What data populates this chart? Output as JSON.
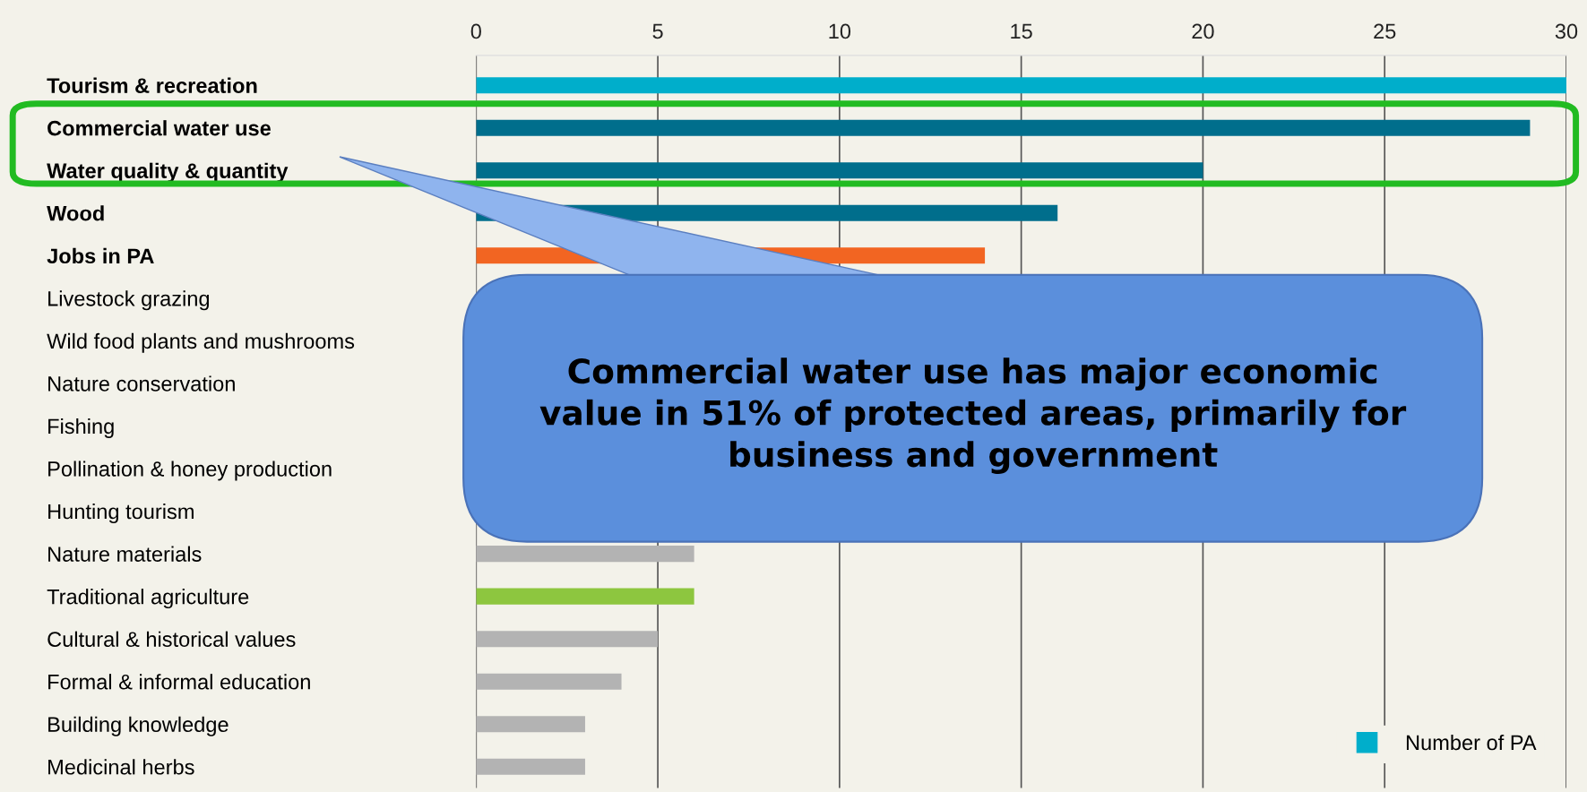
{
  "chart_data": {
    "type": "bar",
    "orientation": "horizontal",
    "categories": [
      "Tourism & recreation",
      "Commercial water use",
      "Water quality & quantity",
      "Wood",
      "Jobs in PA",
      "Livestock grazing",
      "Wild food plants and mushrooms",
      "Nature conservation",
      "Fishing",
      "Pollination & honey production",
      "Hunting tourism",
      "Nature materials",
      "Traditional agriculture",
      "Cultural & historical values",
      "Formal & informal education",
      "Building knowledge",
      "Medicinal herbs"
    ],
    "series": [
      {
        "name": "Number of PA",
        "color": "#00aecb",
        "values": [
          30,
          29,
          20,
          16,
          14,
          null,
          null,
          null,
          null,
          null,
          null,
          6,
          6,
          5,
          4,
          3,
          3
        ],
        "colors": [
          "#00aecb",
          "#006e8c",
          "#006e8c",
          "#006e8c",
          "#f26522",
          "#b3b3b3",
          "#b3b3b3",
          "#b3b3b3",
          "#b3b3b3",
          "#b3b3b3",
          "#b3b3b3",
          "#b3b3b3",
          "#8dc63f",
          "#b3b3b3",
          "#b3b3b3",
          "#b3b3b3",
          "#b3b3b3"
        ]
      }
    ],
    "xlim": [
      0,
      30
    ],
    "xticks": [
      0,
      5,
      10,
      15,
      20,
      25,
      30
    ],
    "grid": "x",
    "legend": "bottom right",
    "annotations": [
      "Commercial water use has major economic\nvalue in 51% of protected areas, primarily for\nbusiness and government"
    ]
  }
}
